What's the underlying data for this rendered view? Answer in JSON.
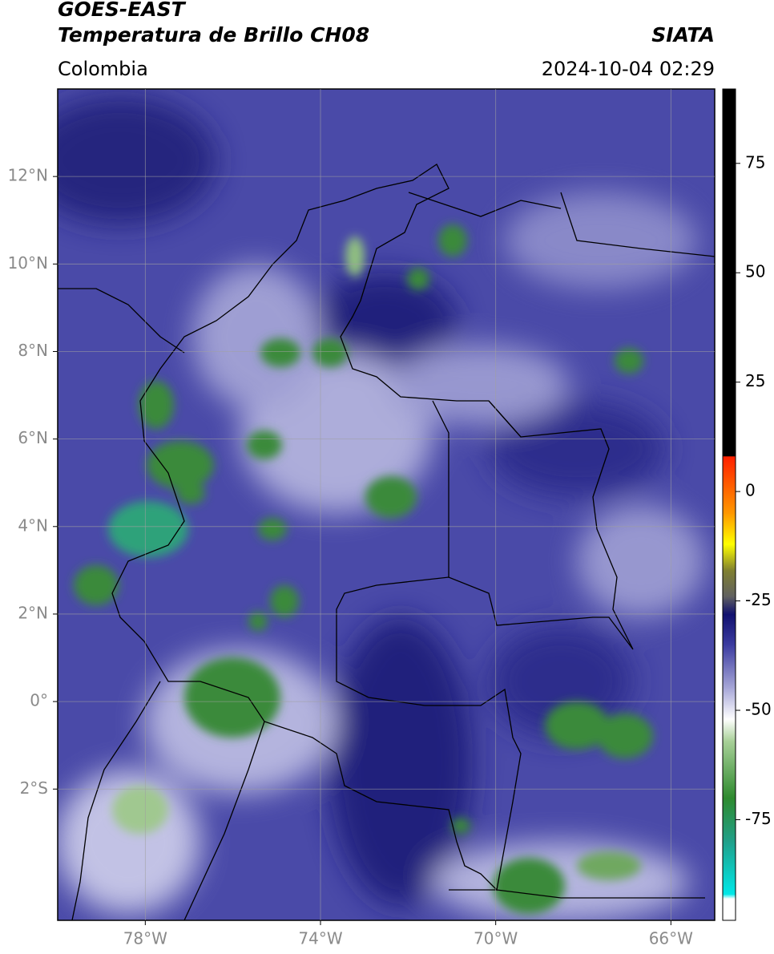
{
  "chart_data": {
    "type": "map",
    "title": "GOES-EAST",
    "subtitle": "Temperatura de Brillo CH08",
    "source": "SIATA",
    "region": "Colombia",
    "timestamp": "2024-10-04 02:29",
    "xlim": [
      -80,
      -65
    ],
    "ylim": [
      -5,
      14
    ],
    "xticks": [
      {
        "value": -78,
        "label": "78°W"
      },
      {
        "value": -74,
        "label": "74°W"
      },
      {
        "value": -70,
        "label": "70°W"
      },
      {
        "value": -66,
        "label": "66°W"
      }
    ],
    "yticks": [
      {
        "value": 12,
        "label": "12°N"
      },
      {
        "value": 10,
        "label": "10°N"
      },
      {
        "value": 8,
        "label": "8°N"
      },
      {
        "value": 6,
        "label": "6°N"
      },
      {
        "value": 4,
        "label": "4°N"
      },
      {
        "value": 2,
        "label": "2°N"
      },
      {
        "value": 0,
        "label": "0°"
      },
      {
        "value": -2,
        "label": "2°S"
      }
    ],
    "grid": true,
    "colorbar": {
      "lim": [
        -98,
        92
      ],
      "ticks": [
        75,
        50,
        25,
        0,
        -25,
        -50,
        -75
      ],
      "stops": [
        {
          "value": -98,
          "color": "#ffffff"
        },
        {
          "value": -93,
          "color": "#ffffff"
        },
        {
          "value": -92,
          "color": "#00e8e8"
        },
        {
          "value": -80,
          "color": "#20a08a"
        },
        {
          "value": -70,
          "color": "#2e8a2e"
        },
        {
          "value": -57,
          "color": "#a8d098"
        },
        {
          "value": -52,
          "color": "#ffffff"
        },
        {
          "value": -45,
          "color": "#a8a8d8"
        },
        {
          "value": -35,
          "color": "#3c3ca0"
        },
        {
          "value": -28,
          "color": "#10106e"
        },
        {
          "value": -24,
          "color": "#606060"
        },
        {
          "value": -18,
          "color": "#808030"
        },
        {
          "value": -12,
          "color": "#ffff00"
        },
        {
          "value": -5,
          "color": "#ff9900"
        },
        {
          "value": 8,
          "color": "#ff2000"
        },
        {
          "value": 8.2,
          "color": "#000000"
        },
        {
          "value": 92,
          "color": "#000000"
        }
      ]
    }
  }
}
